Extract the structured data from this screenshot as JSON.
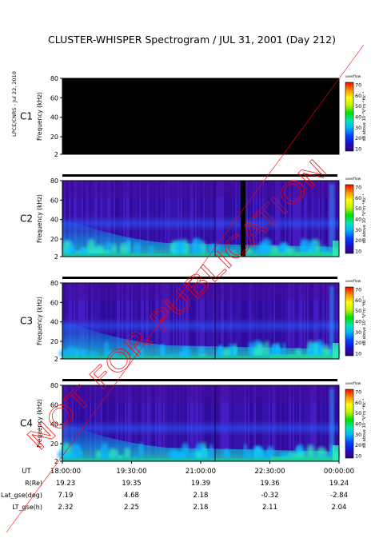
{
  "chart_data": {
    "type": "heatmap",
    "title": "CLUSTER-WHISPER Spectrogram / JUL 31, 2001 (Day 212)",
    "side_label": "LPCE/CNRS - Jul 22, 2010",
    "watermark": "NOT FOR PUBLICATION",
    "ylabel": "Frequency (kHz)",
    "ylim": [
      2,
      80
    ],
    "y_ticks": [
      "80",
      "60",
      "40",
      "20",
      "2"
    ],
    "colorbar": {
      "label": "dB above 10⁻⁸V²m⁻²Hz⁻¹",
      "top_label": "overflow",
      "range": [
        10,
        70
      ],
      "ticks": [
        "70",
        "60",
        "50",
        "40",
        "30",
        "20",
        "10"
      ],
      "colors": [
        "#3a007a",
        "#1a10d0",
        "#0040ff",
        "#00b0ff",
        "#00e8b0",
        "#00e000",
        "#c8f000",
        "#ffff00",
        "#ff9000",
        "#ff0000"
      ]
    },
    "panels": [
      {
        "name": "C1",
        "label_color": "#000000",
        "status": "no data"
      },
      {
        "name": "C2",
        "label_color": "#000000",
        "status": "data",
        "data_gap": "about 22:00 UT"
      },
      {
        "name": "C3",
        "label_color": "#00cc00",
        "status": "data"
      },
      {
        "name": "C4",
        "label_color": "#000000",
        "status": "data"
      }
    ],
    "x_axis": {
      "label": "UT",
      "ticks": [
        "18:00:00",
        "19:30:00",
        "21:00:00",
        "22:30:00",
        "00:00:00"
      ]
    },
    "ephemeris": [
      {
        "label": "R(Re)",
        "values": [
          "19.23",
          "19.35",
          "19.39",
          "19.36",
          "19.24"
        ]
      },
      {
        "label": "Lat_gse(deg)",
        "values": [
          "7.19",
          "4.68",
          "2.18",
          "-0.32",
          "-2.84"
        ]
      },
      {
        "label": "LT_gse(h)",
        "values": [
          "2.32",
          "2.25",
          "2.18",
          "2.11",
          "2.04"
        ]
      }
    ]
  }
}
